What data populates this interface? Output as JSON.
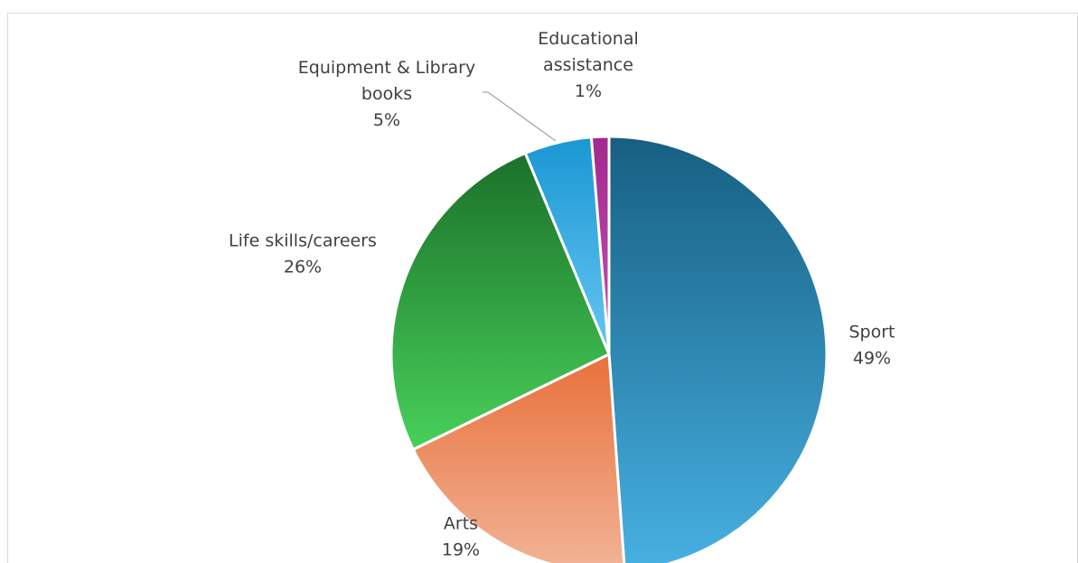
{
  "chart_data": {
    "type": "pie",
    "title": "",
    "slices": [
      {
        "label": "Sport",
        "percent_label": "49%",
        "value": 49,
        "color_top": "#175f82",
        "color_bottom": "#47b1e2"
      },
      {
        "label": "Arts",
        "percent_label": "19%",
        "value": 19,
        "color_top": "#e8703b",
        "color_bottom": "#f2b497"
      },
      {
        "label": "Life skills/careers",
        "percent_label": "26%",
        "value": 26,
        "color_top": "#1b7129",
        "color_bottom": "#48d05a"
      },
      {
        "label": "Equipment & Library books",
        "percent_label": "5%",
        "value": 5,
        "color_top": "#1a97d3",
        "color_bottom": "#67c6f2"
      },
      {
        "label": "Educational assistance",
        "percent_label": "1%",
        "value": 1.3,
        "color_top": "#a3288f",
        "color_bottom": "#c253b0"
      }
    ],
    "legend": "none",
    "data_labels": "outside"
  }
}
